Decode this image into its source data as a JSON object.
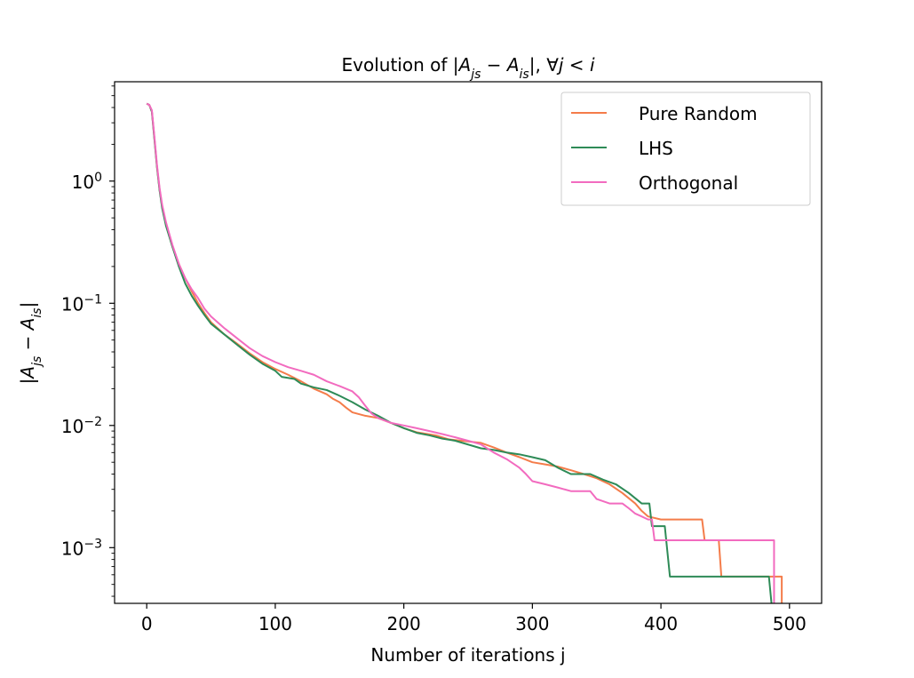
{
  "chart_data": {
    "type": "line",
    "title": "Evolution of |A_js − A_is|, ∀j < i",
    "title_parts": [
      "Evolution of ",
      "|",
      "A",
      "js",
      " − ",
      "A",
      "is",
      "|",
      ",  ∀",
      "j",
      " < ",
      "i"
    ],
    "xlabel": "Number of iterations j",
    "ylabel": "|A_js − A_is|",
    "ylabel_parts": [
      "|",
      "A",
      "js",
      " − ",
      "A",
      "is",
      "|"
    ],
    "x_scale": "linear",
    "y_scale": "log",
    "xlim": [
      -25,
      525
    ],
    "ylim": [
      0.00035,
      6.5
    ],
    "x_ticks": [
      0,
      100,
      200,
      300,
      400,
      500
    ],
    "x_tick_labels": [
      "0",
      "100",
      "200",
      "300",
      "400",
      "500"
    ],
    "y_ticks": [
      0.001,
      0.01,
      0.1,
      1
    ],
    "y_tick_labels": [
      {
        "base": "10",
        "exp": "−3"
      },
      {
        "base": "10",
        "exp": "−2"
      },
      {
        "base": "10",
        "exp": "−1"
      },
      {
        "base": "10",
        "exp": "0"
      }
    ],
    "grid": false,
    "legend_position": "upper right",
    "series": [
      {
        "name": "Pure Random",
        "color": "#f47c4a",
        "points": [
          [
            0,
            4.3
          ],
          [
            2,
            4.2
          ],
          [
            4,
            3.7
          ],
          [
            6,
            2.2
          ],
          [
            8,
            1.3
          ],
          [
            10,
            0.85
          ],
          [
            12,
            0.62
          ],
          [
            15,
            0.44
          ],
          [
            20,
            0.29
          ],
          [
            25,
            0.21
          ],
          [
            30,
            0.16
          ],
          [
            35,
            0.125
          ],
          [
            40,
            0.1
          ],
          [
            45,
            0.083
          ],
          [
            50,
            0.07
          ],
          [
            60,
            0.056
          ],
          [
            70,
            0.047
          ],
          [
            80,
            0.039
          ],
          [
            90,
            0.033
          ],
          [
            100,
            0.029
          ],
          [
            110,
            0.026
          ],
          [
            120,
            0.023
          ],
          [
            130,
            0.02
          ],
          [
            140,
            0.018
          ],
          [
            145,
            0.0165
          ],
          [
            150,
            0.0155
          ],
          [
            155,
            0.014
          ],
          [
            160,
            0.0128
          ],
          [
            170,
            0.012
          ],
          [
            180,
            0.0115
          ],
          [
            190,
            0.0105
          ],
          [
            200,
            0.0095
          ],
          [
            210,
            0.0088
          ],
          [
            225,
            0.0083
          ],
          [
            235,
            0.0077
          ],
          [
            260,
            0.0072
          ],
          [
            270,
            0.0066
          ],
          [
            280,
            0.006
          ],
          [
            290,
            0.0055
          ],
          [
            300,
            0.005
          ],
          [
            310,
            0.0048
          ],
          [
            320,
            0.0046
          ],
          [
            330,
            0.0043
          ],
          [
            340,
            0.004
          ],
          [
            350,
            0.0037
          ],
          [
            360,
            0.0033
          ],
          [
            370,
            0.0028
          ],
          [
            380,
            0.0023
          ],
          [
            385,
            0.002
          ],
          [
            390,
            0.0018
          ],
          [
            400,
            0.0017
          ],
          [
            415,
            0.0017
          ],
          [
            432,
            0.0017
          ],
          [
            434,
            0.00115
          ],
          [
            445,
            0.00115
          ],
          [
            447,
            0.00058
          ],
          [
            470,
            0.00058
          ],
          [
            484,
            0.00058
          ],
          [
            486,
            0.00058
          ],
          [
            492,
            0.00058
          ],
          [
            494,
            0.00058
          ],
          [
            494,
            0.00035
          ]
        ]
      },
      {
        "name": "LHS",
        "color": "#2e8b57",
        "points": [
          [
            0,
            4.3
          ],
          [
            2,
            4.2
          ],
          [
            4,
            3.7
          ],
          [
            6,
            2.2
          ],
          [
            8,
            1.3
          ],
          [
            10,
            0.84
          ],
          [
            12,
            0.6
          ],
          [
            15,
            0.43
          ],
          [
            20,
            0.29
          ],
          [
            25,
            0.2
          ],
          [
            30,
            0.145
          ],
          [
            35,
            0.115
          ],
          [
            40,
            0.095
          ],
          [
            45,
            0.08
          ],
          [
            50,
            0.068
          ],
          [
            60,
            0.056
          ],
          [
            70,
            0.046
          ],
          [
            80,
            0.038
          ],
          [
            90,
            0.032
          ],
          [
            100,
            0.028
          ],
          [
            105,
            0.025
          ],
          [
            115,
            0.024
          ],
          [
            120,
            0.022
          ],
          [
            130,
            0.0205
          ],
          [
            140,
            0.0195
          ],
          [
            150,
            0.0175
          ],
          [
            160,
            0.0155
          ],
          [
            170,
            0.0135
          ],
          [
            180,
            0.012
          ],
          [
            190,
            0.0105
          ],
          [
            200,
            0.0095
          ],
          [
            210,
            0.0087
          ],
          [
            220,
            0.0083
          ],
          [
            230,
            0.0078
          ],
          [
            240,
            0.0075
          ],
          [
            260,
            0.0065
          ],
          [
            270,
            0.0063
          ],
          [
            280,
            0.006
          ],
          [
            290,
            0.0058
          ],
          [
            300,
            0.0055
          ],
          [
            310,
            0.0052
          ],
          [
            320,
            0.0045
          ],
          [
            330,
            0.004
          ],
          [
            345,
            0.004
          ],
          [
            355,
            0.0036
          ],
          [
            365,
            0.0033
          ],
          [
            375,
            0.0028
          ],
          [
            385,
            0.0023
          ],
          [
            391,
            0.0023
          ],
          [
            393,
            0.0015
          ],
          [
            403,
            0.0015
          ],
          [
            407,
            0.00058
          ],
          [
            430,
            0.00058
          ],
          [
            460,
            0.00058
          ],
          [
            484,
            0.00058
          ],
          [
            486,
            0.00035
          ]
        ]
      },
      {
        "name": "Orthogonal",
        "color": "#f26bbf",
        "points": [
          [
            0,
            4.3
          ],
          [
            2,
            4.2
          ],
          [
            4,
            3.8
          ],
          [
            6,
            2.3
          ],
          [
            8,
            1.35
          ],
          [
            10,
            0.88
          ],
          [
            12,
            0.64
          ],
          [
            15,
            0.46
          ],
          [
            20,
            0.3
          ],
          [
            25,
            0.21
          ],
          [
            30,
            0.16
          ],
          [
            35,
            0.13
          ],
          [
            40,
            0.11
          ],
          [
            45,
            0.09
          ],
          [
            50,
            0.078
          ],
          [
            60,
            0.063
          ],
          [
            70,
            0.052
          ],
          [
            80,
            0.043
          ],
          [
            90,
            0.037
          ],
          [
            100,
            0.033
          ],
          [
            110,
            0.03
          ],
          [
            120,
            0.028
          ],
          [
            130,
            0.026
          ],
          [
            140,
            0.023
          ],
          [
            150,
            0.021
          ],
          [
            155,
            0.02
          ],
          [
            160,
            0.019
          ],
          [
            165,
            0.017
          ],
          [
            170,
            0.0145
          ],
          [
            175,
            0.0125
          ],
          [
            180,
            0.0115
          ],
          [
            190,
            0.0105
          ],
          [
            200,
            0.01
          ],
          [
            210,
            0.0095
          ],
          [
            220,
            0.009
          ],
          [
            230,
            0.0085
          ],
          [
            240,
            0.008
          ],
          [
            250,
            0.0075
          ],
          [
            260,
            0.007
          ],
          [
            270,
            0.006
          ],
          [
            280,
            0.0053
          ],
          [
            290,
            0.0045
          ],
          [
            295,
            0.004
          ],
          [
            300,
            0.0035
          ],
          [
            310,
            0.0033
          ],
          [
            320,
            0.0031
          ],
          [
            330,
            0.0029
          ],
          [
            345,
            0.0029
          ],
          [
            350,
            0.0025
          ],
          [
            360,
            0.0023
          ],
          [
            370,
            0.0023
          ],
          [
            375,
            0.0021
          ],
          [
            380,
            0.0019
          ],
          [
            385,
            0.0018
          ],
          [
            390,
            0.0017
          ],
          [
            393,
            0.0017
          ],
          [
            395,
            0.00115
          ],
          [
            430,
            0.00115
          ],
          [
            460,
            0.00115
          ],
          [
            486,
            0.00115
          ],
          [
            488,
            0.00115
          ],
          [
            488,
            0.00035
          ]
        ]
      }
    ]
  }
}
